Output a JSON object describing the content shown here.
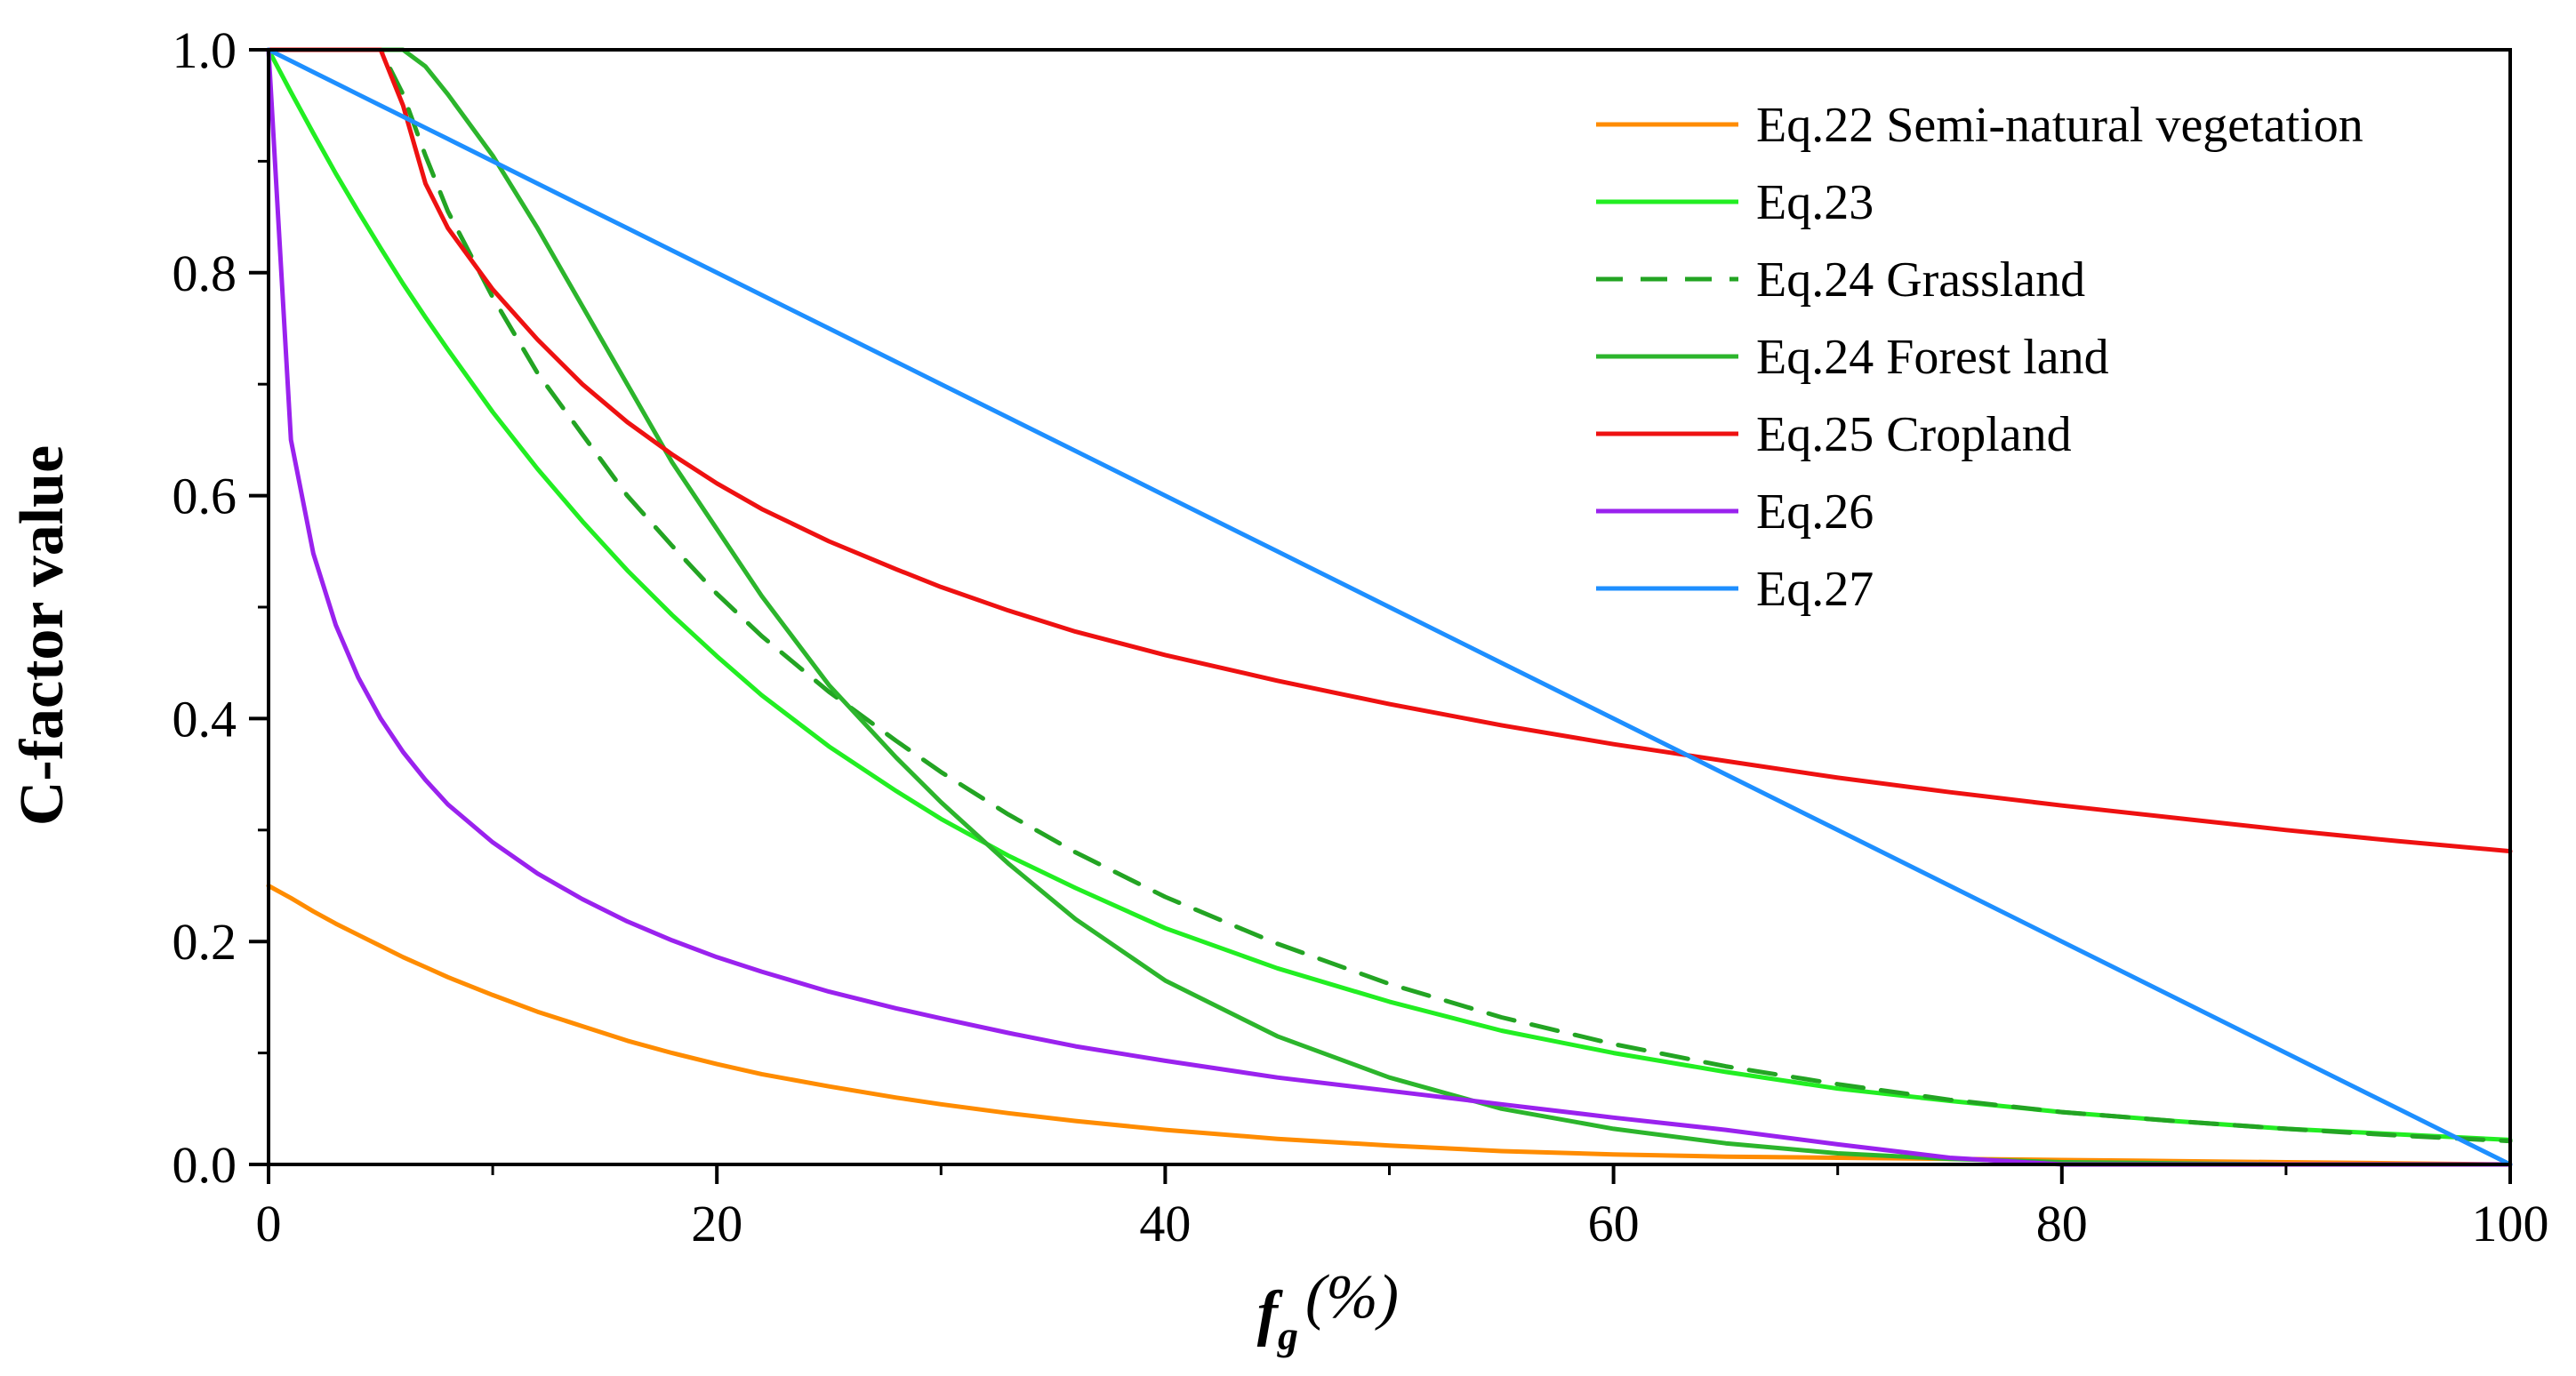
{
  "chart_data": {
    "type": "line",
    "title": "",
    "xlabel": {
      "main": "f",
      "sub": "g",
      "suffix": " (%)"
    },
    "ylabel": "C-factor value",
    "xlim": [
      0,
      100
    ],
    "ylim": [
      0,
      1.0
    ],
    "x_ticks": [
      0,
      20,
      40,
      60,
      80,
      100
    ],
    "x_tick_labels": [
      "0",
      "20",
      "40",
      "60",
      "80",
      "100"
    ],
    "y_ticks": [
      0,
      0.2,
      0.4,
      0.6,
      0.8,
      1.0
    ],
    "y_tick_labels": [
      "0.0",
      "0.2",
      "0.4",
      "0.6",
      "0.8",
      "1.0"
    ],
    "grid": false,
    "legend_position": "top-right",
    "x": [
      0,
      1,
      2,
      3,
      4,
      5,
      6,
      7,
      8,
      10,
      12,
      14,
      16,
      18,
      20,
      22,
      25,
      28,
      30,
      33,
      36,
      40,
      45,
      50,
      55,
      60,
      65,
      70,
      75,
      80,
      85,
      90,
      95,
      100
    ],
    "series": [
      {
        "name": "Eq.22 Semi-natural vegetation",
        "color": "#ff8c00",
        "dash": false,
        "values": [
          0.25,
          0.239,
          0.227,
          0.216,
          0.206,
          0.196,
          0.186,
          0.177,
          0.168,
          0.152,
          0.137,
          0.124,
          0.111,
          0.1,
          0.09,
          0.081,
          0.07,
          0.06,
          0.054,
          0.046,
          0.039,
          0.031,
          0.023,
          0.017,
          0.012,
          0.009,
          0.007,
          0.006,
          0.005,
          0.004,
          0.003,
          0.002,
          0.001,
          0.0
        ]
      },
      {
        "name": "Eq.23",
        "color": "#22ee22",
        "dash": false,
        "values": [
          1.0,
          0.962,
          0.925,
          0.889,
          0.855,
          0.822,
          0.79,
          0.76,
          0.731,
          0.675,
          0.624,
          0.577,
          0.533,
          0.493,
          0.456,
          0.421,
          0.375,
          0.335,
          0.31,
          0.277,
          0.248,
          0.212,
          0.176,
          0.146,
          0.12,
          0.1,
          0.083,
          0.068,
          0.057,
          0.047,
          0.039,
          0.032,
          0.027,
          0.022
        ]
      },
      {
        "name": "Eq.24 Grassland",
        "color": "#23a423",
        "dash": true,
        "values": [
          1.0,
          1.0,
          1.0,
          1.0,
          1.0,
          1.0,
          0.96,
          0.905,
          0.855,
          0.778,
          0.71,
          0.655,
          0.6,
          0.555,
          0.512,
          0.474,
          0.424,
          0.38,
          0.352,
          0.314,
          0.28,
          0.24,
          0.198,
          0.162,
          0.132,
          0.108,
          0.088,
          0.072,
          0.058,
          0.047,
          0.039,
          0.032,
          0.026,
          0.021
        ]
      },
      {
        "name": "Eq.24 Forest land",
        "color": "#2cb52c",
        "dash": false,
        "values": [
          1.0,
          1.0,
          1.0,
          1.0,
          1.0,
          1.0,
          1.0,
          0.985,
          0.96,
          0.905,
          0.84,
          0.77,
          0.7,
          0.63,
          0.57,
          0.51,
          0.43,
          0.365,
          0.325,
          0.27,
          0.22,
          0.165,
          0.115,
          0.078,
          0.05,
          0.032,
          0.019,
          0.01,
          0.005,
          0.002,
          0.001,
          0.0,
          0.0,
          0.0
        ]
      },
      {
        "name": "Eq.25 Cropland",
        "color": "#ee1111",
        "dash": false,
        "values": [
          1.0,
          1.0,
          1.0,
          1.0,
          1.0,
          1.0,
          0.95,
          0.88,
          0.84,
          0.785,
          0.74,
          0.7,
          0.666,
          0.637,
          0.611,
          0.588,
          0.559,
          0.534,
          0.518,
          0.497,
          0.478,
          0.457,
          0.434,
          0.413,
          0.394,
          0.377,
          0.362,
          0.347,
          0.334,
          0.322,
          0.311,
          0.3,
          0.29,
          0.281
        ]
      },
      {
        "name": "Eq.26",
        "color": "#9a22ee",
        "dash": false,
        "values": [
          1.0,
          0.65,
          0.548,
          0.484,
          0.437,
          0.4,
          0.37,
          0.345,
          0.323,
          0.289,
          0.261,
          0.238,
          0.218,
          0.201,
          0.186,
          0.173,
          0.155,
          0.14,
          0.131,
          0.118,
          0.106,
          0.093,
          0.078,
          0.066,
          0.054,
          0.042,
          0.031,
          0.018,
          0.006,
          0.0,
          0.0,
          0.0,
          0.0,
          0.0
        ]
      },
      {
        "name": "Eq.27",
        "color": "#1e8fff",
        "dash": false,
        "values": [
          1.0,
          0.99,
          0.98,
          0.97,
          0.96,
          0.95,
          0.94,
          0.93,
          0.92,
          0.9,
          0.88,
          0.86,
          0.84,
          0.82,
          0.8,
          0.78,
          0.75,
          0.72,
          0.7,
          0.67,
          0.64,
          0.6,
          0.55,
          0.5,
          0.45,
          0.4,
          0.35,
          0.3,
          0.25,
          0.2,
          0.15,
          0.1,
          0.05,
          0.0
        ]
      }
    ]
  }
}
